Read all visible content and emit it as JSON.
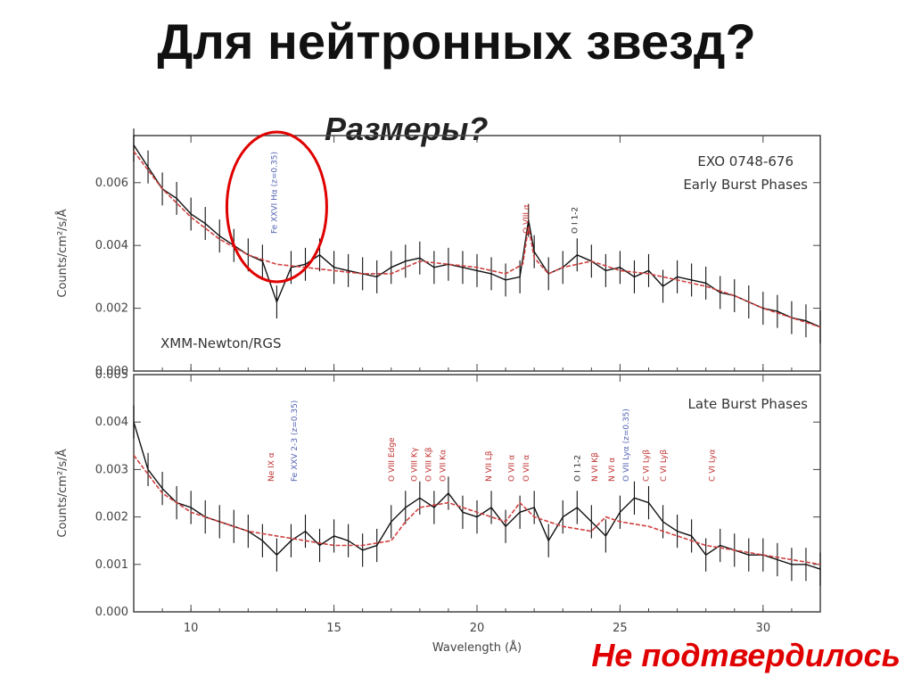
{
  "slide": {
    "title": "Для нейтронных звезд?",
    "subtitle": "Размеры?",
    "conclusion": "Не подтвердилось"
  },
  "colors": {
    "highlight": "#e00000",
    "model": "#d04040",
    "data": "#111111",
    "ident_red": "#c03030",
    "ident_blue": "#5060b0",
    "ident_black": "#222222"
  },
  "chart_data": [
    {
      "type": "line",
      "panel": "top",
      "source_label": "EXO 0748-676",
      "phase_label": "Early Burst Phases",
      "instrument_label": "XMM-Newton/RGS",
      "ylabel": "Counts/cm²/s/Å",
      "xlim": [
        8,
        32
      ],
      "ylim": [
        0.0,
        0.0075
      ],
      "yticks": [
        "0.000",
        "0.002",
        "0.004",
        "0.006"
      ],
      "ytick_values": [
        0.0,
        0.002,
        0.004,
        0.006
      ],
      "line_ids": [
        {
          "label": "Fe XXVI Hα (z=0.35)",
          "x": 13.0,
          "color": "blue"
        },
        {
          "label": "O VIII α",
          "x": 21.8,
          "color": "red"
        },
        {
          "label": "O I 1-2",
          "x": 23.5,
          "color": "black"
        }
      ],
      "highlight_x": 13.0,
      "series": [
        {
          "name": "data",
          "x": [
            8.0,
            8.5,
            9.0,
            9.5,
            10.0,
            10.5,
            11.0,
            11.5,
            12.0,
            12.5,
            13.0,
            13.5,
            14.0,
            14.5,
            15.0,
            15.5,
            16.0,
            16.5,
            17.0,
            17.5,
            18.0,
            18.5,
            19.0,
            19.5,
            20.0,
            20.5,
            21.0,
            21.5,
            21.8,
            22.0,
            22.5,
            23.0,
            23.5,
            24.0,
            24.5,
            25.0,
            25.5,
            26.0,
            26.5,
            27.0,
            27.5,
            28.0,
            28.5,
            29.0,
            29.5,
            30.0,
            30.5,
            31.0,
            31.5,
            32.0
          ],
          "y": [
            0.0072,
            0.0065,
            0.0058,
            0.0055,
            0.005,
            0.0047,
            0.0043,
            0.004,
            0.0037,
            0.0035,
            0.0022,
            0.0033,
            0.0034,
            0.0037,
            0.0033,
            0.0032,
            0.0031,
            0.003,
            0.0033,
            0.0035,
            0.0036,
            0.0033,
            0.0034,
            0.0033,
            0.0032,
            0.0031,
            0.0029,
            0.003,
            0.0048,
            0.0038,
            0.0031,
            0.0033,
            0.0037,
            0.0035,
            0.0032,
            0.0033,
            0.003,
            0.0032,
            0.0027,
            0.003,
            0.0029,
            0.0028,
            0.0025,
            0.0024,
            0.0022,
            0.002,
            0.0019,
            0.0017,
            0.0016,
            0.0014
          ]
        },
        {
          "name": "model",
          "x": [
            8.0,
            9.0,
            10.0,
            11.0,
            12.0,
            13.0,
            14.0,
            15.0,
            16.0,
            17.0,
            18.0,
            19.0,
            20.0,
            21.0,
            21.6,
            21.8,
            22.0,
            22.5,
            23.0,
            24.0,
            25.0,
            26.0,
            27.0,
            28.0,
            29.0,
            30.0,
            31.0,
            32.0
          ],
          "y": [
            0.007,
            0.0058,
            0.0049,
            0.0042,
            0.0037,
            0.0034,
            0.0033,
            0.0032,
            0.0031,
            0.0031,
            0.0035,
            0.0034,
            0.0033,
            0.0031,
            0.0034,
            0.0046,
            0.0036,
            0.0031,
            0.0033,
            0.0035,
            0.0032,
            0.0031,
            0.0029,
            0.0027,
            0.0024,
            0.002,
            0.0017,
            0.0014
          ]
        }
      ]
    },
    {
      "type": "line",
      "panel": "bottom",
      "phase_label": "Late Burst Phases",
      "ylabel": "Counts/cm²/s/Å",
      "xlabel": "Wavelength (Å)",
      "xlim": [
        8,
        32
      ],
      "ylim": [
        0.0,
        0.005
      ],
      "xticks": [
        "10",
        "15",
        "20",
        "25",
        "30"
      ],
      "xtick_values": [
        10,
        15,
        20,
        25,
        30
      ],
      "yticks": [
        "0.000",
        "0.001",
        "0.002",
        "0.003",
        "0.004",
        "0.005"
      ],
      "ytick_values": [
        0.0,
        0.001,
        0.002,
        0.003,
        0.004,
        0.005
      ],
      "line_ids": [
        {
          "label": "Ne IX α",
          "x": 12.9,
          "color": "red"
        },
        {
          "label": "Fe XXV 2-3 (z=0.35)",
          "x": 13.7,
          "color": "blue"
        },
        {
          "label": "O VIII Edge",
          "x": 17.1,
          "color": "red"
        },
        {
          "label": "O VIII Kγ",
          "x": 17.9,
          "color": "red"
        },
        {
          "label": "O VIII Kβ",
          "x": 18.4,
          "color": "red"
        },
        {
          "label": "O VII Kα",
          "x": 18.9,
          "color": "red"
        },
        {
          "label": "N VII Lβ",
          "x": 20.5,
          "color": "red"
        },
        {
          "label": "O VII α",
          "x": 21.3,
          "color": "red"
        },
        {
          "label": "O VII α",
          "x": 21.8,
          "color": "red"
        },
        {
          "label": "O I 1-2",
          "x": 23.6,
          "color": "black"
        },
        {
          "label": "N VI Kβ",
          "x": 24.2,
          "color": "red"
        },
        {
          "label": "O VII Lyα (z=0.35)",
          "x": 25.3,
          "color": "blue"
        },
        {
          "label": "N VI α",
          "x": 24.8,
          "color": "red"
        },
        {
          "label": "C VI Lyβ",
          "x": 26.0,
          "color": "red"
        },
        {
          "label": "C VI Lyβ",
          "x": 26.6,
          "color": "red"
        },
        {
          "label": "C VI Lyα",
          "x": 28.3,
          "color": "red"
        }
      ],
      "series": [
        {
          "name": "data",
          "x": [
            8.0,
            8.5,
            9.0,
            9.5,
            10.0,
            10.5,
            11.0,
            11.5,
            12.0,
            12.5,
            13.0,
            13.5,
            14.0,
            14.5,
            15.0,
            15.5,
            16.0,
            16.5,
            17.0,
            17.5,
            18.0,
            18.5,
            19.0,
            19.5,
            20.0,
            20.5,
            21.0,
            21.5,
            22.0,
            22.5,
            23.0,
            23.5,
            24.0,
            24.5,
            25.0,
            25.5,
            26.0,
            26.5,
            27.0,
            27.5,
            28.0,
            28.5,
            29.0,
            29.5,
            30.0,
            30.5,
            31.0,
            31.5,
            32.0
          ],
          "y": [
            0.004,
            0.003,
            0.0026,
            0.0023,
            0.0022,
            0.002,
            0.0019,
            0.0018,
            0.0017,
            0.0015,
            0.0012,
            0.0015,
            0.0017,
            0.0014,
            0.0016,
            0.0015,
            0.0013,
            0.0014,
            0.0019,
            0.0022,
            0.0024,
            0.0022,
            0.0025,
            0.0021,
            0.002,
            0.0022,
            0.0018,
            0.0021,
            0.0022,
            0.0015,
            0.002,
            0.0022,
            0.0019,
            0.0016,
            0.0021,
            0.0024,
            0.0023,
            0.0019,
            0.0017,
            0.0016,
            0.0012,
            0.0014,
            0.0013,
            0.0012,
            0.0012,
            0.0011,
            0.001,
            0.001,
            0.0009
          ]
        },
        {
          "name": "model",
          "x": [
            8.0,
            9.0,
            10.0,
            11.0,
            12.0,
            13.0,
            14.0,
            15.0,
            16.0,
            17.0,
            17.5,
            18.0,
            19.0,
            20.0,
            21.0,
            21.5,
            22.0,
            23.0,
            24.0,
            24.5,
            25.0,
            26.0,
            27.0,
            28.0,
            29.0,
            30.0,
            31.0,
            32.0
          ],
          "y": [
            0.0033,
            0.0025,
            0.0021,
            0.0019,
            0.0017,
            0.0016,
            0.0015,
            0.0014,
            0.0014,
            0.0015,
            0.0019,
            0.0022,
            0.0023,
            0.0021,
            0.0019,
            0.0023,
            0.002,
            0.0018,
            0.0017,
            0.002,
            0.0019,
            0.0018,
            0.0016,
            0.0014,
            0.0013,
            0.0012,
            0.0011,
            0.001
          ]
        }
      ]
    }
  ]
}
